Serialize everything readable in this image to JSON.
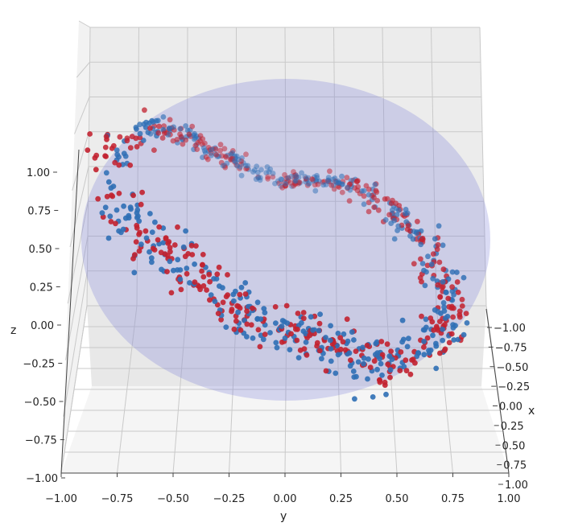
{
  "chart_data": {
    "type": "scatter",
    "projection": "3d",
    "title": "",
    "xlabel": "x",
    "ylabel": "y",
    "zlabel": "z",
    "xlim": [
      -1,
      1
    ],
    "ylim": [
      -1,
      1
    ],
    "zlim": [
      -1,
      1
    ],
    "x_ticks": [
      "1.00",
      "0.75",
      "0.50",
      "0.25",
      "0.00",
      "0.25",
      "0.50",
      "0.75",
      "1.00"
    ],
    "x_tick_prefix": "−",
    "y_ticks": [
      "−1.00",
      "−0.75",
      "−0.50",
      "−0.25",
      "0.00",
      "0.25",
      "0.50",
      "0.75",
      "1.00"
    ],
    "z_ticks": [
      "−1.00",
      "−0.75",
      "−0.50",
      "−0.25",
      "0.00",
      "0.25",
      "0.50",
      "0.75",
      "1.00"
    ],
    "grid": true,
    "sphere": {
      "radius": 1,
      "color": "#7b7fd6",
      "alpha": 0.28
    },
    "series": [
      {
        "color": "#c2212f"
      },
      {
        "color": "#2f6fb5"
      }
    ],
    "point_alpha": 0.9
  }
}
